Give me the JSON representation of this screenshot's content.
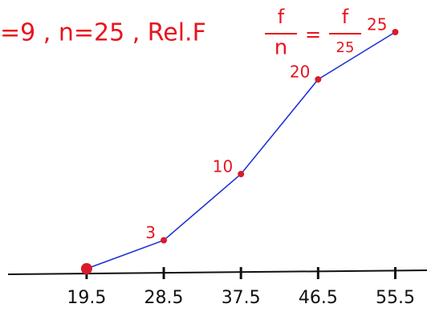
{
  "chart_data": {
    "type": "line",
    "annotation": {
      "lead": "=9 , n=25 , Rel.F",
      "equals": "=",
      "fractions": [
        {
          "num": "f",
          "den": "n"
        },
        {
          "num": "f",
          "den": "25"
        }
      ]
    },
    "x": [
      19.5,
      28.5,
      37.5,
      46.5,
      55.5
    ],
    "series": [
      {
        "color": "#1f33d6",
        "marker_color": "#d81b2a",
        "values": [
          0,
          3,
          10,
          20,
          25
        ]
      }
    ],
    "value_labels": [
      null,
      "3",
      "10",
      "20",
      "25"
    ],
    "label_color": "#e8141e",
    "xlim": [
      9.4,
      59.2
    ],
    "xticks": [
      19.5,
      28.5,
      37.5,
      46.5,
      55.5
    ],
    "ylim": [
      0,
      25
    ]
  }
}
